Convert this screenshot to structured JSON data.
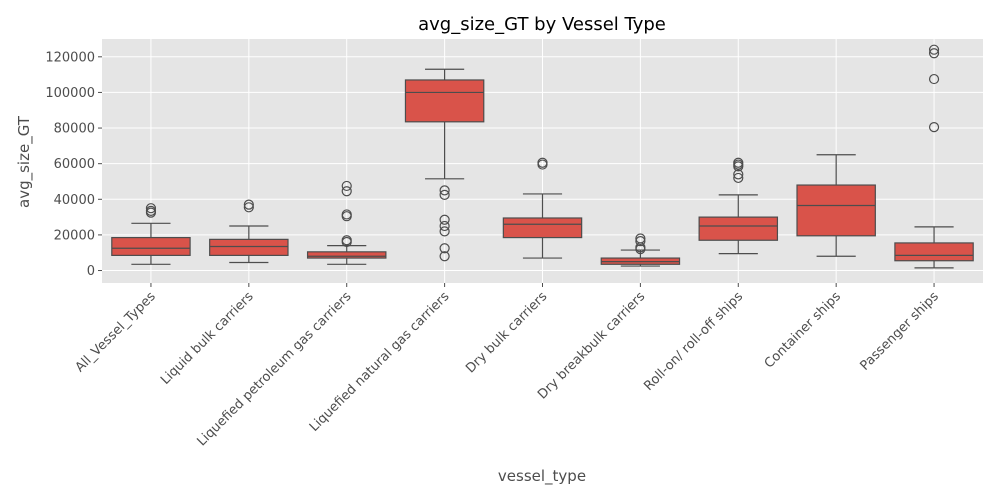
{
  "chart_data": {
    "type": "box",
    "title": "avg_size_GT by Vessel Type",
    "xlabel": "vessel_type",
    "ylabel": "avg_size_GT",
    "ylim": [
      -7000,
      130000
    ],
    "yticks": [
      0,
      20000,
      40000,
      60000,
      80000,
      100000,
      120000
    ],
    "grid": true,
    "colors": {
      "box": "#d9534a",
      "background": "#e5e5e5",
      "grid": "#ffffff",
      "line": "#4d4d4d",
      "text": "#4d4d4d"
    },
    "categories": [
      "All_Vessel_Types",
      "Liquid bulk carriers",
      "Liquefied petroleum gas carriers",
      "Liquefied natural gas carriers",
      "Dry bulk carriers",
      "Dry breakbulk carriers",
      "Roll-on/ roll-off ships",
      "Container ships",
      "Passenger ships"
    ],
    "boxes": [
      {
        "whisker_low": 3500,
        "q1": 8500,
        "median": 12500,
        "q3": 18500,
        "whisker_high": 26500,
        "outliers": [
          32500,
          33500,
          35000
        ]
      },
      {
        "whisker_low": 4500,
        "q1": 8500,
        "median": 13500,
        "q3": 17500,
        "whisker_high": 25000,
        "outliers": [
          35500,
          37000
        ]
      },
      {
        "whisker_low": 3500,
        "q1": 7000,
        "median": 8000,
        "q3": 10500,
        "whisker_high": 14000,
        "outliers": [
          16000,
          17000,
          30500,
          31500,
          44500,
          47500
        ]
      },
      {
        "whisker_low": 51500,
        "q1": 83500,
        "median": 100000,
        "q3": 107000,
        "whisker_high": 113000,
        "outliers": [
          8000,
          12500,
          22000,
          25000,
          28500,
          42500,
          45000
        ]
      },
      {
        "whisker_low": 7000,
        "q1": 18500,
        "median": 26000,
        "q3": 29500,
        "whisker_high": 43000,
        "outliers": [
          59500,
          60500
        ]
      },
      {
        "whisker_low": 2500,
        "q1": 3500,
        "median": 5000,
        "q3": 7000,
        "whisker_high": 11500,
        "outliers": [
          12000,
          13000,
          16500,
          18000
        ]
      },
      {
        "whisker_low": 9500,
        "q1": 17000,
        "median": 25000,
        "q3": 30000,
        "whisker_high": 42500,
        "outliers": [
          52000,
          54000,
          58500,
          59500,
          60500
        ]
      },
      {
        "whisker_low": 8000,
        "q1": 19500,
        "median": 36500,
        "q3": 48000,
        "whisker_high": 65000,
        "outliers": []
      },
      {
        "whisker_low": 1500,
        "q1": 5500,
        "median": 8500,
        "q3": 15500,
        "whisker_high": 24500,
        "outliers": [
          80500,
          107500,
          122000,
          124000
        ]
      }
    ]
  }
}
